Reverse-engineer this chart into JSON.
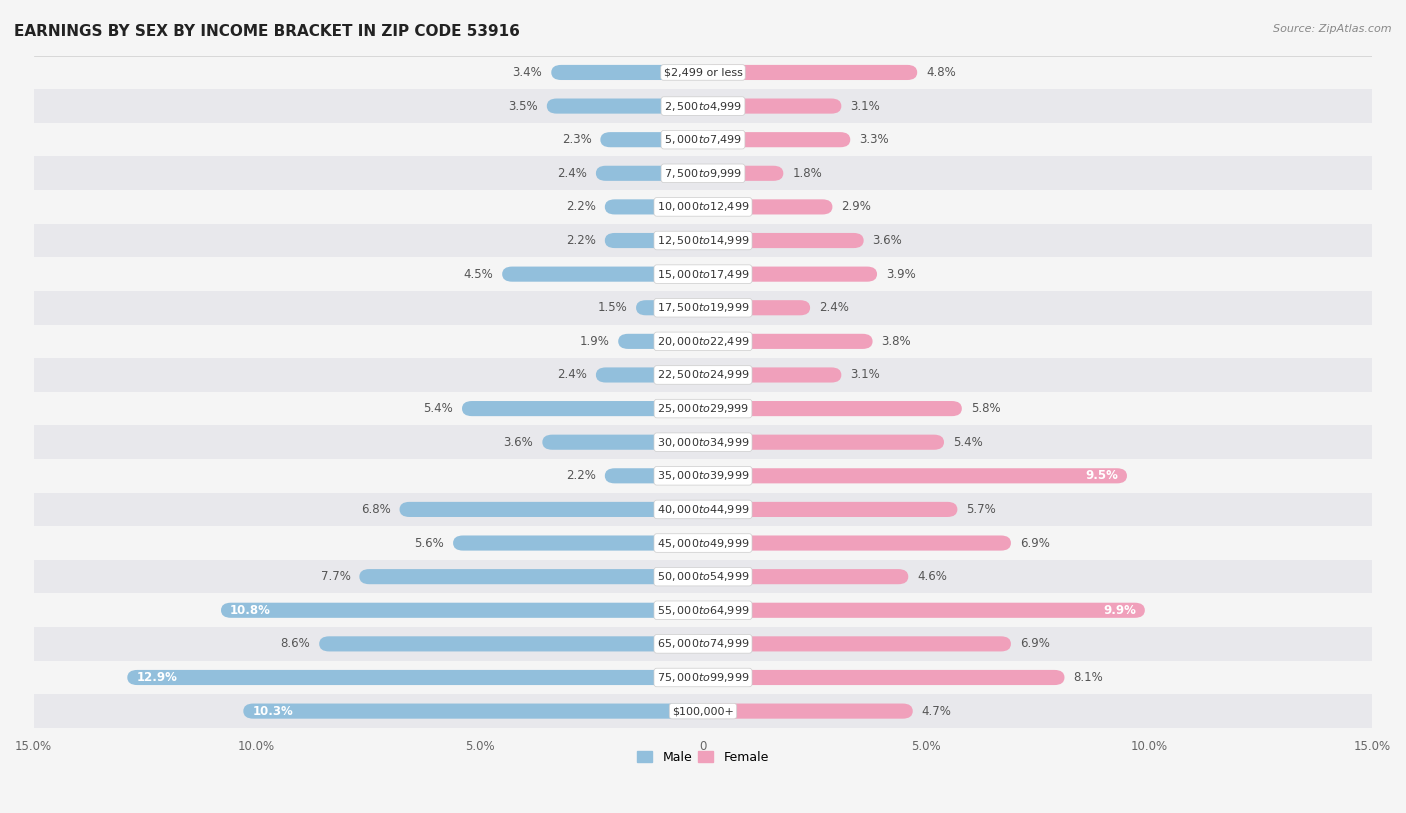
{
  "title": "EARNINGS BY SEX BY INCOME BRACKET IN ZIP CODE 53916",
  "source": "Source: ZipAtlas.com",
  "categories": [
    "$2,499 or less",
    "$2,500 to $4,999",
    "$5,000 to $7,499",
    "$7,500 to $9,999",
    "$10,000 to $12,499",
    "$12,500 to $14,999",
    "$15,000 to $17,499",
    "$17,500 to $19,999",
    "$20,000 to $22,499",
    "$22,500 to $24,999",
    "$25,000 to $29,999",
    "$30,000 to $34,999",
    "$35,000 to $39,999",
    "$40,000 to $44,999",
    "$45,000 to $49,999",
    "$50,000 to $54,999",
    "$55,000 to $64,999",
    "$65,000 to $74,999",
    "$75,000 to $99,999",
    "$100,000+"
  ],
  "male_values": [
    3.4,
    3.5,
    2.3,
    2.4,
    2.2,
    2.2,
    4.5,
    1.5,
    1.9,
    2.4,
    5.4,
    3.6,
    2.2,
    6.8,
    5.6,
    7.7,
    10.8,
    8.6,
    12.9,
    10.3
  ],
  "female_values": [
    4.8,
    3.1,
    3.3,
    1.8,
    2.9,
    3.6,
    3.9,
    2.4,
    3.8,
    3.1,
    5.8,
    5.4,
    9.5,
    5.7,
    6.9,
    4.6,
    9.9,
    6.9,
    8.1,
    4.7
  ],
  "male_color": "#92bfdc",
  "female_color": "#f0a0bb",
  "bg_color": "#f5f5f5",
  "row_color_light": "#f5f5f5",
  "row_color_dark": "#e8e8ec",
  "xlim": 15.0,
  "bar_height": 0.45,
  "title_fontsize": 11,
  "label_fontsize": 8.5,
  "tick_fontsize": 8.5,
  "category_fontsize": 8.0,
  "male_inside_threshold": 9.5,
  "female_inside_threshold": 9.0
}
